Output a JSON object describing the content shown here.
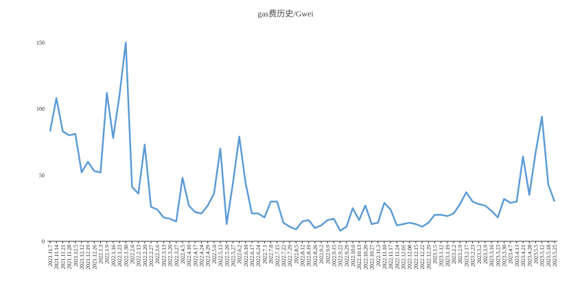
{
  "chart_data": {
    "type": "line",
    "title": "gas费历史/Gwei",
    "categories": [
      "2021.11.7",
      "2021.11.14",
      "2021.11.21",
      "2021.11.28",
      "2021.12.5",
      "2021.12.12",
      "2021.12.19",
      "2021.12.26",
      "2022.1.3",
      "2022.1.9",
      "2022.1.16",
      "2022.1.23",
      "2022.1.30",
      "2022.2.6",
      "2022.2.13",
      "2022.2.20",
      "2022.2.27",
      "2022.3.6",
      "2022.3.13",
      "2022.3.20",
      "2022.3.27",
      "2022.4.5",
      "2022.4.10",
      "2022.4.17",
      "2022.4.24",
      "2022.4.29",
      "2022.5.6",
      "2022.5.13",
      "2022.5.20",
      "2022.5.27",
      "2022.6.2",
      "2022.6.10",
      "2022.6.17",
      "2022.6.24",
      "2022.7.1",
      "2022.7.8",
      "2022.7.15",
      "2022.7.22",
      "2022.7.29",
      "2022.8.5",
      "2022.8.12",
      "2022.8.19",
      "2022.8.26",
      "2022.9.2",
      "2022.9.9",
      "2022.9.15",
      "2022.9.22",
      "2022.9.29",
      "2022.10.6",
      "2022.10.13",
      "2022.10.20",
      "2022.10.27",
      "2022.11.3",
      "2022.11.10",
      "2022.11.17",
      "2022.11.24",
      "2022.12.01",
      "2022.12.08",
      "2022.12.15",
      "2022.12.22",
      "2022.12.29",
      "2023.1.5",
      "2023.1.12",
      "2023.1.19",
      "2023.2.2",
      "2023.2.9",
      "2023.2.17",
      "2023.2.23",
      "2023.3.2",
      "2023.3.9",
      "2023.3.16",
      "2023.3.23",
      "2023.3.30",
      "2023.4.7",
      "2023.4.13",
      "2023.4.21",
      "2023.4.28",
      "2023.5.5",
      "2023.5.12",
      "2023.5.18",
      "2023.5.25"
    ],
    "values": [
      83,
      108,
      83,
      80,
      81,
      52,
      60,
      53,
      52,
      112,
      78,
      110,
      150,
      41,
      36,
      73,
      26,
      24,
      18,
      17,
      15,
      48,
      27,
      22,
      21,
      27,
      36,
      70,
      13,
      44,
      79,
      44,
      21,
      21,
      18,
      30,
      30,
      14,
      11,
      9,
      15,
      16,
      10,
      12,
      16,
      17,
      8,
      11,
      25,
      16,
      27,
      13,
      14,
      29,
      24,
      12,
      13,
      14,
      13,
      11,
      14,
      20,
      20,
      19,
      21,
      28,
      37,
      30,
      28,
      27,
      23,
      18,
      32,
      29,
      30,
      64,
      35,
      67,
      94,
      43,
      30
    ],
    "color": "#5b9bd5",
    "ylim": [
      0,
      150
    ],
    "yticks": [
      0,
      50,
      100,
      150
    ],
    "grid": false
  }
}
